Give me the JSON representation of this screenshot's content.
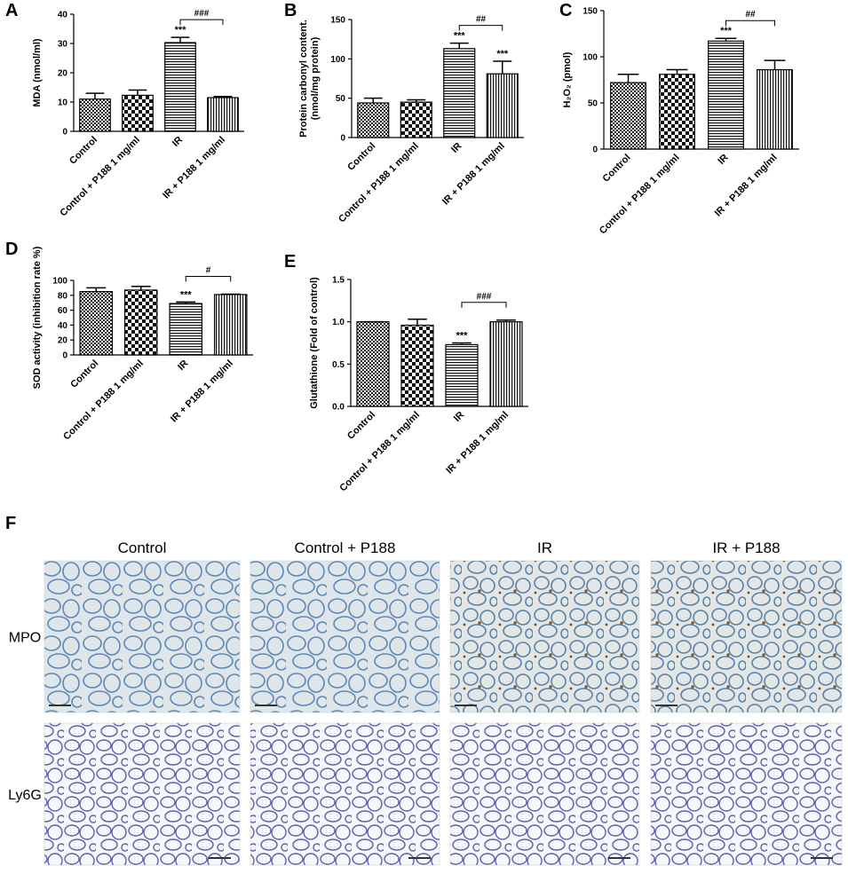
{
  "chart_data": [
    {
      "type": "bar",
      "panel": "A",
      "ylabel": [
        "MDA (nmol/ml)"
      ],
      "categories": [
        "Control",
        "Control + P188 1 mg/ml",
        "IR",
        "IR + P188 1 mg/ml"
      ],
      "values": [
        11,
        12.3,
        30.3,
        11.5
      ],
      "errors": [
        2,
        1.8,
        1.8,
        0.4
      ],
      "patterns": [
        "crosshatch",
        "checker",
        "horizontal",
        "vertical"
      ],
      "significance": [
        null,
        null,
        "***",
        null
      ],
      "comparison": {
        "label": "###",
        "categories": [
          "IR",
          "IR + P188 1 mg/ml"
        ]
      },
      "ylim": [
        0,
        40
      ],
      "yticks": [
        0,
        10,
        20,
        30,
        40
      ]
    },
    {
      "type": "bar",
      "panel": "B",
      "ylabel": [
        "Protein carbonyl content.",
        "(nmol/mg protein)"
      ],
      "categories": [
        "Control",
        "Control + P188 1 mg/ml",
        "IR",
        "IR + P188 1 mg/ml"
      ],
      "values": [
        44,
        45,
        113,
        81
      ],
      "errors": [
        6,
        3,
        7,
        16
      ],
      "patterns": [
        "crosshatch",
        "checker",
        "horizontal",
        "vertical"
      ],
      "significance": [
        null,
        null,
        "***",
        "***"
      ],
      "comparison": {
        "label": "##",
        "categories": [
          "IR",
          "IR + P188 1 mg/ml"
        ]
      },
      "ylim": [
        0,
        150
      ],
      "yticks": [
        0,
        50,
        100,
        150
      ]
    },
    {
      "type": "bar",
      "panel": "C",
      "ylabel": [
        "H₂O₂ (pmol)"
      ],
      "categories": [
        "Control",
        "Control + P188 1 mg/ml",
        "IR",
        "IR + P188 1 mg/ml"
      ],
      "values": [
        72,
        81,
        117,
        86
      ],
      "errors": [
        9,
        5,
        3,
        10
      ],
      "patterns": [
        "crosshatch",
        "checker",
        "horizontal",
        "vertical"
      ],
      "significance": [
        null,
        null,
        "***",
        null
      ],
      "comparison": {
        "label": "##",
        "categories": [
          "IR",
          "IR + P188 1 mg/ml"
        ]
      },
      "ylim": [
        0,
        150
      ],
      "yticks": [
        0,
        50,
        100,
        150
      ]
    },
    {
      "type": "bar",
      "panel": "D",
      "ylabel": [
        "SOD activity (inhibition rate %)"
      ],
      "categories": [
        "Control",
        "Control + P188 1 mg/ml",
        "IR",
        "IR + P188 1 mg/ml"
      ],
      "values": [
        85,
        87,
        69,
        81
      ],
      "errors": [
        5,
        5,
        2,
        0.5
      ],
      "patterns": [
        "crosshatch",
        "checker",
        "horizontal",
        "vertical"
      ],
      "significance": [
        null,
        null,
        "***",
        null
      ],
      "comparison": {
        "label": "#",
        "categories": [
          "IR",
          "IR + P188 1 mg/ml"
        ]
      },
      "ylim": [
        0,
        100
      ],
      "yticks": [
        0,
        20,
        40,
        60,
        80,
        100
      ]
    },
    {
      "type": "bar",
      "panel": "E",
      "ylabel": [
        "Glutathione (Fold of control)"
      ],
      "categories": [
        "Control",
        "Control + P188 1 mg/ml",
        "IR",
        "IR + P188 1 mg/ml"
      ],
      "values": [
        1.0,
        0.96,
        0.73,
        1.0
      ],
      "errors": [
        0,
        0.07,
        0.02,
        0.02
      ],
      "patterns": [
        "crosshatch",
        "checker",
        "horizontal",
        "vertical"
      ],
      "significance": [
        null,
        null,
        "***",
        null
      ],
      "comparison": {
        "label": "###",
        "categories": [
          "IR",
          "IR + P188 1 mg/ml"
        ]
      },
      "ylim": [
        0,
        1.5
      ],
      "yticks": [
        {
          "value": 0,
          "label": "0.0"
        },
        0.5,
        {
          "value": 1,
          "label": "1.0"
        },
        1.5
      ]
    }
  ],
  "figure_f": {
    "panel": "F",
    "columns": [
      "Control",
      "Control + P188",
      "IR",
      "IR + P188"
    ],
    "rows": [
      "MPO",
      "Ly6G"
    ]
  }
}
